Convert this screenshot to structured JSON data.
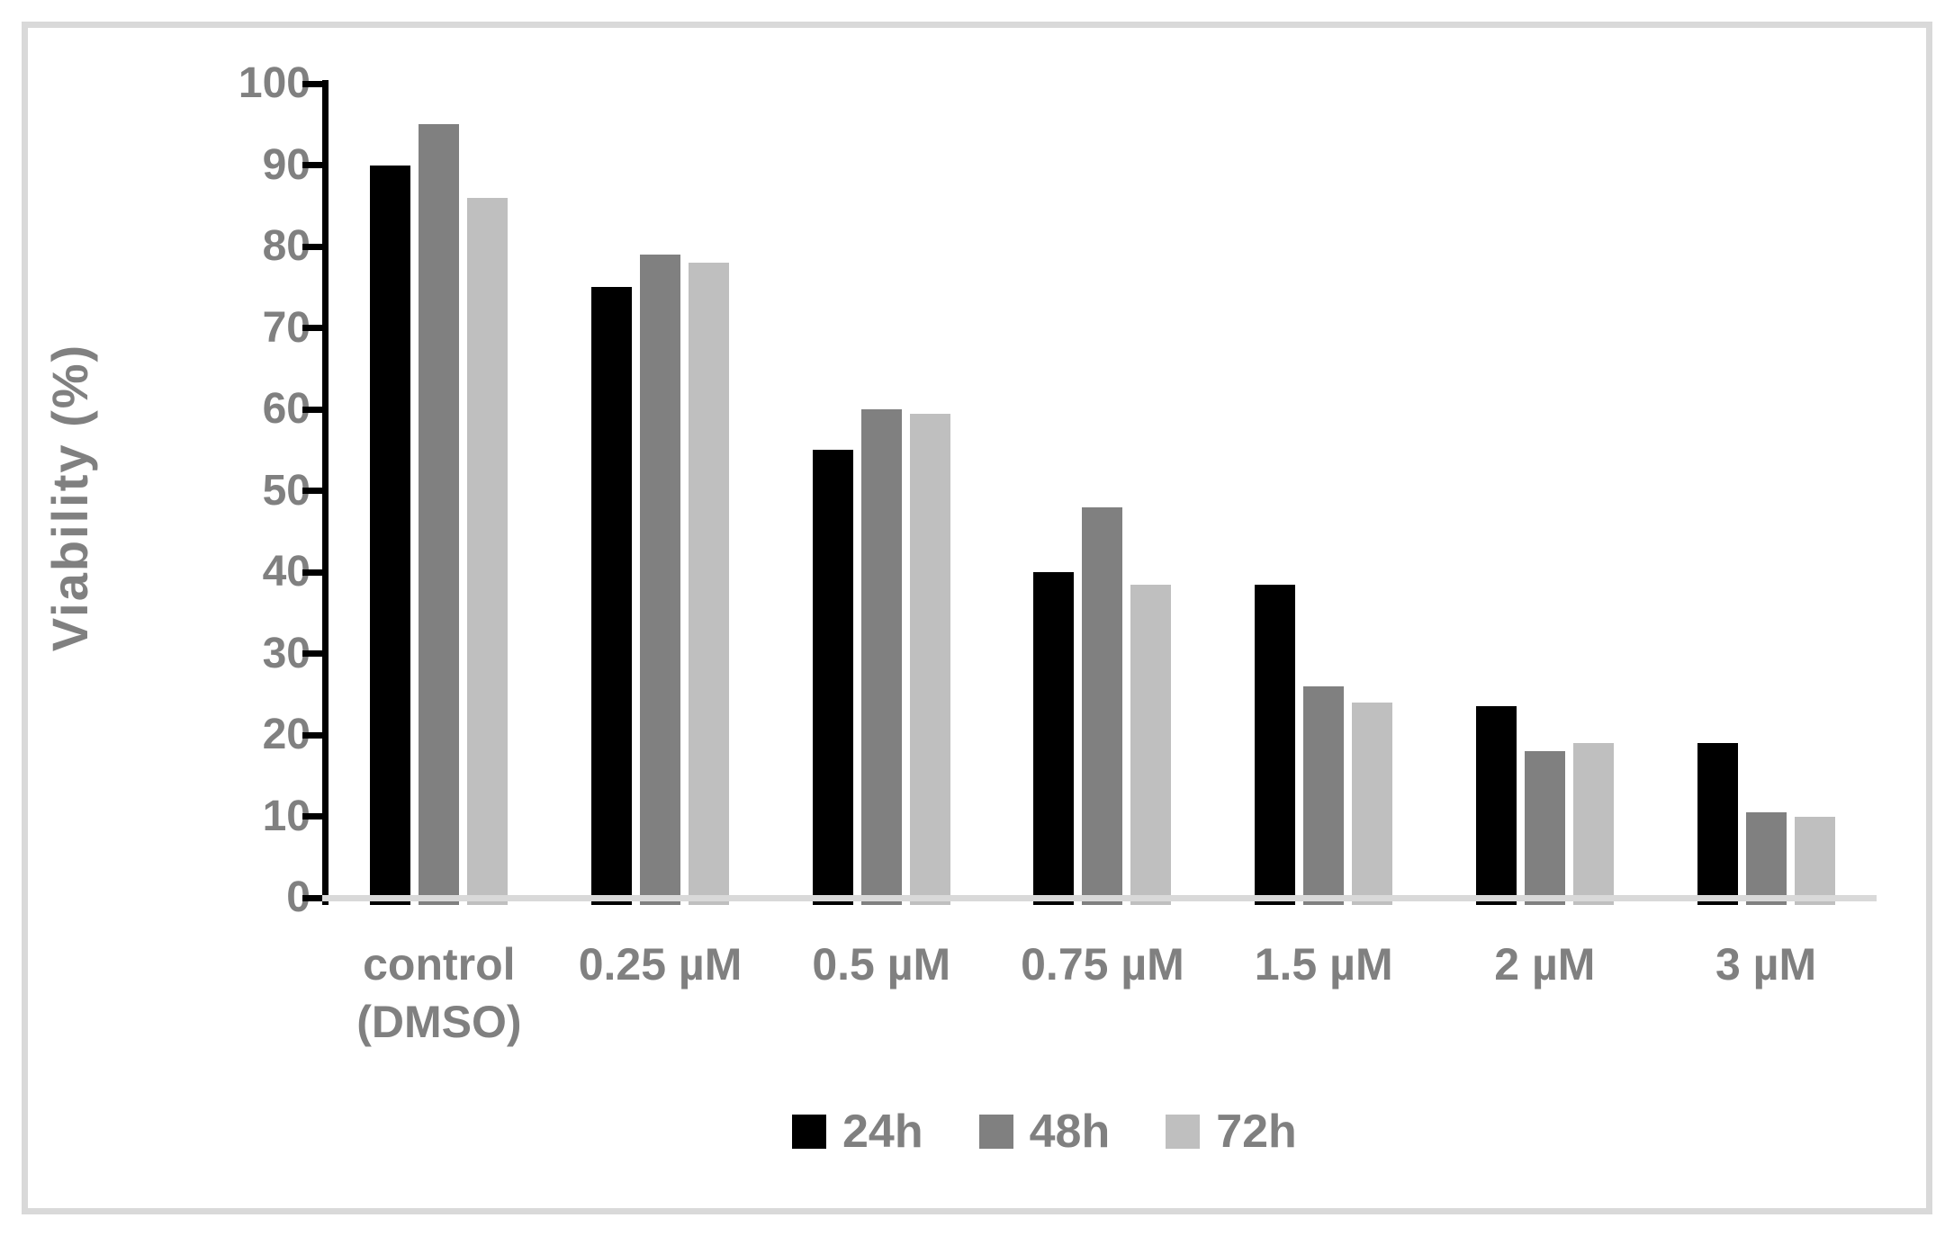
{
  "chart_data": {
    "type": "bar",
    "title": "",
    "xlabel": "",
    "ylabel": "Viability (%)",
    "ylim": [
      0,
      100
    ],
    "y_tick_step": 10,
    "y_ticks": [
      100,
      90,
      80,
      70,
      60,
      50,
      40,
      30,
      20,
      10,
      0
    ],
    "grid": false,
    "legend_position": "bottom",
    "categories": [
      "control\n(DMSO)",
      "0.25 µM",
      "0.5 µM",
      "0.75 µM",
      "1.5 µM",
      "2 µM",
      "3 µM"
    ],
    "series": [
      {
        "name": "24h",
        "color": "#000000",
        "values": [
          90,
          75,
          55,
          40,
          38.5,
          23.5,
          19
        ]
      },
      {
        "name": "48h",
        "color": "#808080",
        "values": [
          95,
          79,
          60,
          48,
          26,
          18,
          10.5
        ]
      },
      {
        "name": "72h",
        "color": "#BFBFBF",
        "values": [
          86,
          78,
          59.5,
          38.5,
          24,
          19,
          10
        ]
      }
    ],
    "colors": {
      "axis": "#000000",
      "baseline": "#D9D9D9",
      "text": "#808080",
      "frame_border": "#D9D9D9",
      "background": "#FFFFFF"
    }
  }
}
